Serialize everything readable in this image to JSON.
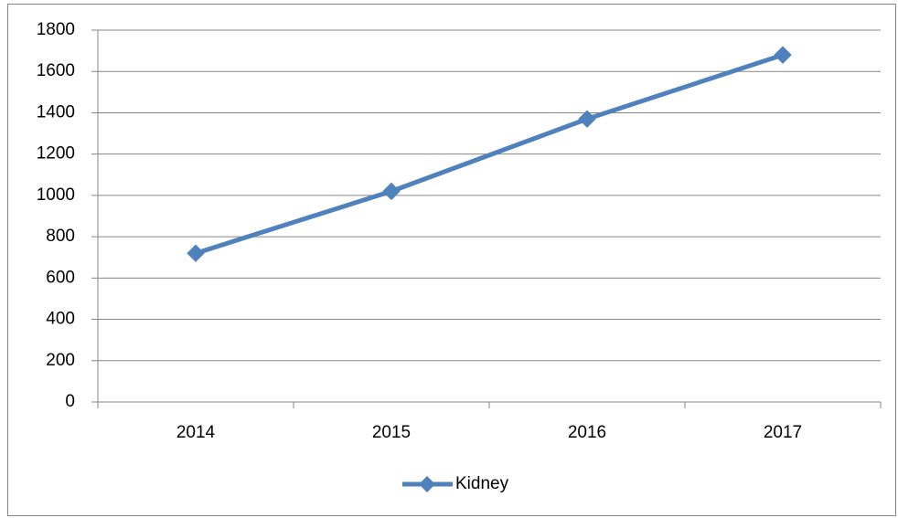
{
  "chart_data": {
    "type": "line",
    "categories": [
      "2014",
      "2015",
      "2016",
      "2017"
    ],
    "series": [
      {
        "name": "Kidney",
        "color": "#4f81bd",
        "values": [
          720,
          1020,
          1370,
          1680
        ]
      }
    ],
    "ylim": [
      0,
      1800
    ],
    "yticks": [
      0,
      200,
      400,
      600,
      800,
      1000,
      1200,
      1400,
      1600,
      1800
    ],
    "grid": true,
    "legend": "bottom"
  }
}
